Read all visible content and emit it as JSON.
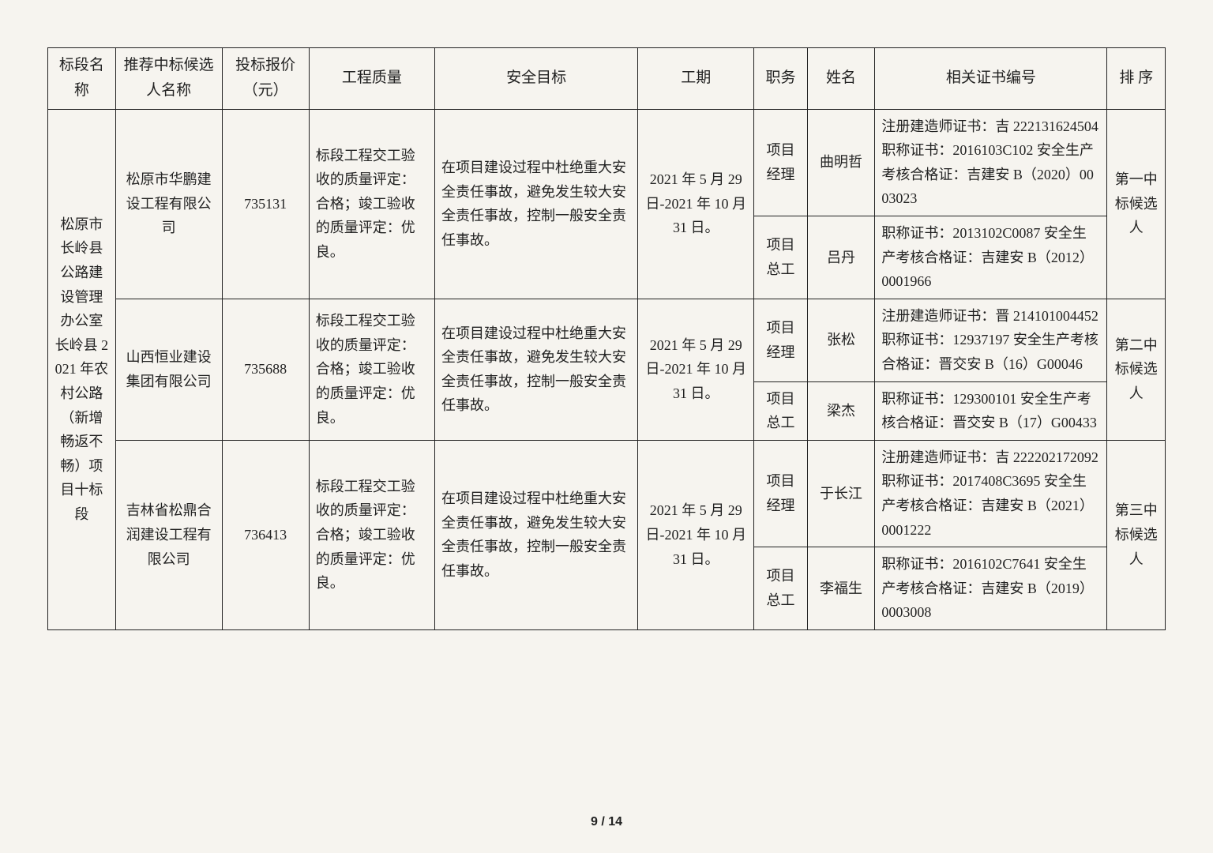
{
  "headers": {
    "section": "标段名称",
    "candidate": "推荐中标候选人名称",
    "bid": "投标报价（元）",
    "quality": "工程质量",
    "safety": "安全目标",
    "period": "工期",
    "role": "职务",
    "name": "姓名",
    "cert": "相关证书编号",
    "rank": "排 序"
  },
  "section_name": "松原市长岭县公路建设管理办公室长岭县 2021 年农村公路（新增畅返不畅）项目十标段",
  "quality_text": "标段工程交工验收的质量评定：合格；竣工验收的质量评定：优良。",
  "safety_text": "在项目建设过程中杜绝重大安全责任事故，避免发生较大安全责任事故，控制一般安全责任事故。",
  "period_text": "2021 年 5 月 29 日-2021 年 10 月 31 日。",
  "candidates": [
    {
      "company": "松原市华鹏建设工程有限公司",
      "bid": "735131",
      "rank": "第一中标候选人",
      "people": [
        {
          "role": "项目经理",
          "name": "曲明哲",
          "cert": "注册建造师证书：吉 222131624504\n职称证书：2016103C102\n安全生产考核合格证：吉建安 B（2020）0003023"
        },
        {
          "role": "项目总工",
          "name": "吕丹",
          "cert": "职称证书：2013102C0087\n安全生产考核合格证：吉建安 B（2012）0001966"
        }
      ]
    },
    {
      "company": "山西恒业建设集团有限公司",
      "bid": "735688",
      "rank": "第二中标候选人",
      "people": [
        {
          "role": "项目经理",
          "name": "张松",
          "cert": "注册建造师证书：晋 214101004452\n职称证书：12937197\n安全生产考核合格证：晋交安 B（16）G00046"
        },
        {
          "role": "项目总工",
          "name": "梁杰",
          "cert": "职称证书：129300101\n安全生产考核合格证：晋交安 B（17）G00433"
        }
      ]
    },
    {
      "company": "吉林省松鼎合润建设工程有限公司",
      "bid": "736413",
      "rank": "第三中标候选人",
      "people": [
        {
          "role": "项目经理",
          "name": "于长江",
          "cert": "注册建造师证书：吉 222202172092\n职称证书：2017408C3695\n安全生产考核合格证：吉建安 B（2021）0001222"
        },
        {
          "role": "项目总工",
          "name": "李福生",
          "cert": "职称证书：2016102C7641\n安全生产考核合格证：吉建安 B（2019）0003008"
        }
      ]
    }
  ],
  "page_number": "9 / 14"
}
